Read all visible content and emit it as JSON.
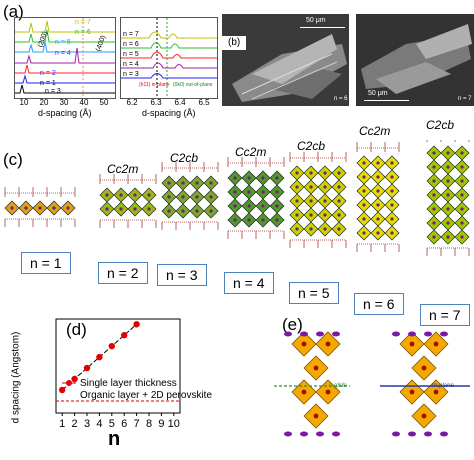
{
  "panels": {
    "a": "(a)",
    "b": "(b)",
    "c": "(c)",
    "d": "(d)",
    "e": "(e)"
  },
  "panel_a": {
    "left_plot": {
      "xlabel": "d-spacing (Å)",
      "xticks": [
        "10",
        "20",
        "30",
        "40",
        "50"
      ],
      "series_labels": [
        "n = 1",
        "n = 2",
        "n = 3",
        "n = 4",
        "n = 5",
        "n = 6",
        "n = 7"
      ],
      "peak_labels": [
        "(200)",
        "(400)"
      ],
      "n3_label": "n = 3",
      "colors": [
        "#000000",
        "#1f1fff",
        "#ff2020",
        "#a020a0",
        "#20a0ff",
        "#30c030",
        "#c0c000"
      ]
    },
    "right_plot": {
      "xlabel": "d-spacing (Å)",
      "xticks": [
        "6.2",
        "6.3",
        "6.4",
        "6.5"
      ],
      "series_labels": [
        "n = 7",
        "n = 6",
        "n = 5",
        "n = 4",
        "n = 3"
      ],
      "legend_in_plane": "(h11) in-plane",
      "legend_out_plane": "(0k0) out-of-plane"
    }
  },
  "panel_b": {
    "left": {
      "scale": "50 μm",
      "n": "n = 6"
    },
    "right": {
      "scale": "50 μm",
      "n": "n = 7"
    }
  },
  "panel_c": {
    "space_groups": [
      "Cc2m",
      "C2cb",
      "Cc2m",
      "C2cb",
      "Cc2m",
      "C2cb"
    ],
    "n_boxes": [
      "n = 1",
      "n = 2",
      "n = 3",
      "n = 4",
      "n = 5",
      "n = 6",
      "n = 7"
    ]
  },
  "panel_d": {
    "chart_data": {
      "type": "line",
      "x": [
        1,
        2,
        3,
        4,
        5,
        6,
        7
      ],
      "series": [
        {
          "name": "Single layer thickness",
          "values": [
            13.5,
            19.9,
            26.3,
            32.7,
            39.1,
            45.5,
            51.9
          ]
        }
      ],
      "reference_line": {
        "name": "Organic layer + 2D perovskite",
        "value": 7
      },
      "xlabel": "n",
      "ylabel": "d spacing (Angstom)",
      "xticks": [
        "1",
        "2",
        "3",
        "4",
        "5",
        "6",
        "7",
        "8",
        "9",
        "10"
      ],
      "xlim": [
        0.5,
        10.5
      ],
      "ylim": [
        0,
        55
      ]
    }
  },
  "panel_e": {
    "glide_label": "c-glide",
    "mirror_label": "m-plane"
  }
}
